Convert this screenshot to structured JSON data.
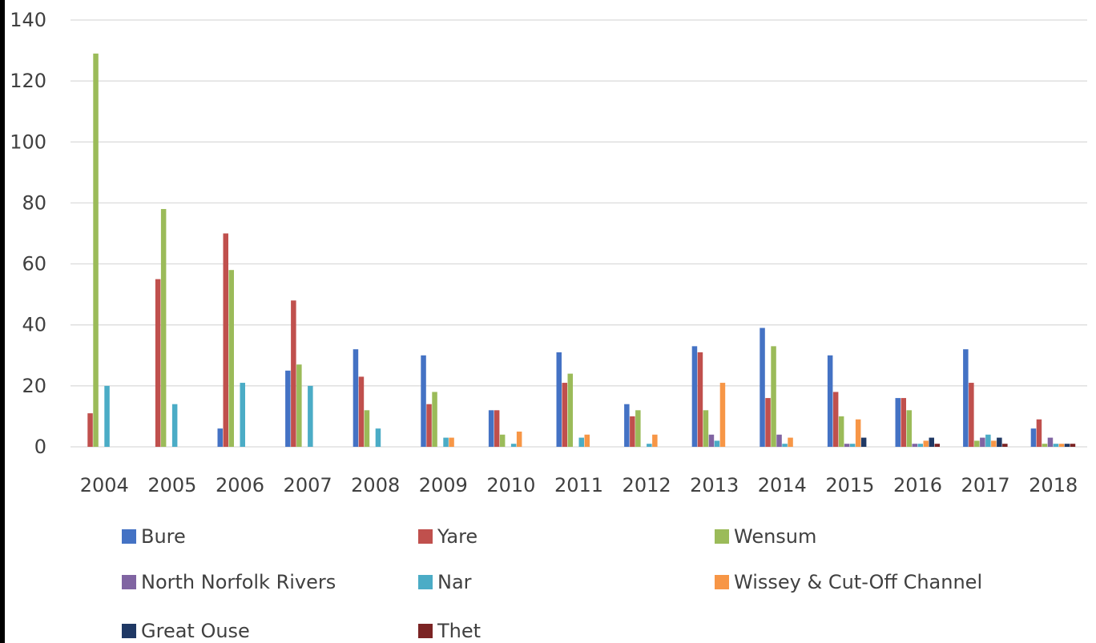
{
  "chart_data": {
    "type": "bar",
    "title": "",
    "xlabel": "",
    "ylabel": "",
    "ylim": [
      0,
      140
    ],
    "yticks": [
      0,
      20,
      40,
      60,
      80,
      100,
      120,
      140
    ],
    "grid": true,
    "legend_position": "bottom",
    "categories": [
      "2004",
      "2005",
      "2006",
      "2007",
      "2008",
      "2009",
      "2010",
      "2011",
      "2012",
      "2013",
      "2014",
      "2015",
      "2016",
      "2017",
      "2018"
    ],
    "series": [
      {
        "name": "Bure",
        "color": "#4472C4",
        "values": [
          0,
          0,
          6,
          25,
          32,
          30,
          12,
          31,
          14,
          33,
          39,
          30,
          16,
          32,
          6
        ]
      },
      {
        "name": "Yare",
        "color": "#C0504D",
        "values": [
          11,
          55,
          70,
          48,
          23,
          14,
          12,
          21,
          10,
          31,
          16,
          18,
          16,
          21,
          9
        ]
      },
      {
        "name": "Wensum",
        "color": "#9BBB59",
        "values": [
          129,
          78,
          58,
          27,
          12,
          18,
          4,
          24,
          12,
          12,
          33,
          10,
          12,
          2,
          1
        ]
      },
      {
        "name": "North Norfolk Rivers",
        "color": "#8064A2",
        "values": [
          0,
          0,
          0,
          0,
          0,
          0,
          0,
          0,
          0,
          4,
          4,
          1,
          1,
          3,
          3
        ]
      },
      {
        "name": "Nar",
        "color": "#4BACC6",
        "values": [
          20,
          14,
          21,
          20,
          6,
          3,
          1,
          3,
          1,
          2,
          1,
          1,
          1,
          4,
          1
        ]
      },
      {
        "name": "Wissey & Cut-Off Channel",
        "color": "#F79646",
        "values": [
          0,
          0,
          0,
          0,
          0,
          3,
          5,
          4,
          4,
          21,
          3,
          9,
          2,
          2,
          1
        ]
      },
      {
        "name": "Great Ouse",
        "color": "#1F3864",
        "values": [
          0,
          0,
          0,
          0,
          0,
          0,
          0,
          0,
          0,
          0,
          0,
          3,
          3,
          3,
          1
        ]
      },
      {
        "name": "Thet",
        "color": "#7B2424",
        "values": [
          0,
          0,
          0,
          0,
          0,
          0,
          0,
          0,
          0,
          0,
          0,
          0,
          1,
          1,
          1
        ]
      }
    ]
  }
}
